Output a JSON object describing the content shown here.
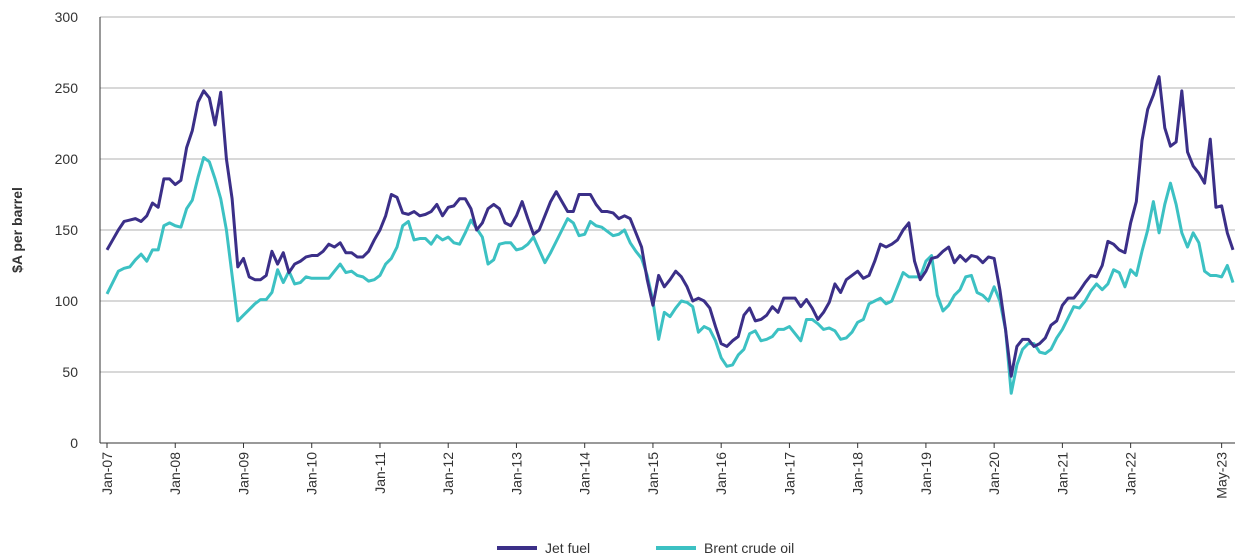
{
  "chart_data": {
    "type": "line",
    "y_label": "$A per barrel",
    "ylim": [
      0,
      300
    ],
    "yticks": [
      0,
      50,
      100,
      150,
      200,
      250,
      300
    ],
    "grid": true,
    "legend": "bottom",
    "categories": [
      "Jan-07",
      null,
      null,
      null,
      null,
      null,
      null,
      null,
      null,
      null,
      null,
      null,
      "Jan-08",
      null,
      null,
      null,
      null,
      null,
      null,
      null,
      null,
      null,
      null,
      null,
      "Jan-09",
      null,
      null,
      null,
      null,
      null,
      null,
      null,
      null,
      null,
      null,
      null,
      "Jan-10",
      null,
      null,
      null,
      null,
      null,
      null,
      null,
      null,
      null,
      null,
      null,
      "Jan-11",
      null,
      null,
      null,
      null,
      null,
      null,
      null,
      null,
      null,
      null,
      null,
      "Jan-12",
      null,
      null,
      null,
      null,
      null,
      null,
      null,
      null,
      null,
      null,
      null,
      "Jan-13",
      null,
      null,
      null,
      null,
      null,
      null,
      null,
      null,
      null,
      null,
      null,
      "Jan-14",
      null,
      null,
      null,
      null,
      null,
      null,
      null,
      null,
      null,
      null,
      null,
      "Jan-15",
      null,
      null,
      null,
      null,
      null,
      null,
      null,
      null,
      null,
      null,
      null,
      "Jan-16",
      null,
      null,
      null,
      null,
      null,
      null,
      null,
      null,
      null,
      null,
      null,
      "Jan-17",
      null,
      null,
      null,
      null,
      null,
      null,
      null,
      null,
      null,
      null,
      null,
      "Jan-18",
      null,
      null,
      null,
      null,
      null,
      null,
      null,
      null,
      null,
      null,
      null,
      "Jan-19",
      null,
      null,
      null,
      null,
      null,
      null,
      null,
      null,
      null,
      null,
      null,
      "Jan-20",
      null,
      null,
      null,
      null,
      null,
      null,
      null,
      null,
      null,
      null,
      null,
      "Jan-21",
      null,
      null,
      null,
      null,
      null,
      null,
      null,
      null,
      null,
      null,
      null,
      "Jan-22",
      null,
      null,
      null,
      null,
      null,
      null,
      null,
      null,
      null,
      null,
      null,
      null,
      null,
      null,
      null,
      "May-23",
      null,
      null
    ],
    "series": [
      {
        "name": "Jet fuel",
        "color": "#3b2f88",
        "values": [
          136,
          143,
          150,
          156,
          157,
          158,
          156,
          160,
          169,
          166,
          186,
          186,
          182,
          185,
          208,
          220,
          240,
          248,
          243,
          224,
          247,
          200,
          172,
          124,
          130,
          117,
          115,
          115,
          118,
          135,
          126,
          134,
          120,
          126,
          128,
          131,
          132,
          132,
          135,
          140,
          138,
          141,
          134,
          134,
          131,
          131,
          135,
          143,
          150,
          160,
          175,
          173,
          162,
          161,
          163,
          160,
          161,
          163,
          168,
          160,
          166,
          167,
          172,
          172,
          165,
          150,
          155,
          165,
          168,
          165,
          155,
          153,
          160,
          170,
          158,
          147,
          150,
          160,
          170,
          177,
          170,
          163,
          163,
          175,
          175,
          175,
          168,
          163,
          163,
          162,
          158,
          160,
          158,
          148,
          138,
          115,
          97,
          118,
          110,
          115,
          121,
          117,
          110,
          100,
          102,
          100,
          95,
          82,
          70,
          68,
          72,
          75,
          90,
          95,
          86,
          87,
          90,
          96,
          92,
          102,
          102,
          102,
          96,
          101,
          95,
          87,
          92,
          99,
          112,
          106,
          115,
          118,
          121,
          116,
          118,
          128,
          140,
          138,
          140,
          143,
          150,
          155,
          128,
          115,
          121,
          130,
          131,
          135,
          138,
          127,
          132,
          128,
          132,
          131,
          127,
          131,
          130,
          108,
          80,
          47,
          68,
          73,
          73,
          68,
          70,
          74,
          83,
          86,
          97,
          102,
          102,
          107,
          113,
          118,
          117,
          125,
          142,
          140,
          136,
          134,
          155,
          170,
          213,
          235,
          245,
          258,
          222,
          209,
          212,
          248,
          205,
          195,
          190,
          183,
          214,
          166,
          167,
          148,
          136
        ]
      },
      {
        "name": "Brent crude oil",
        "color": "#3cc1c3",
        "values": [
          105,
          113,
          121,
          123,
          124,
          129,
          133,
          128,
          136,
          136,
          153,
          155,
          153,
          152,
          165,
          171,
          187,
          201,
          198,
          186,
          172,
          150,
          118,
          86,
          90,
          94,
          98,
          101,
          101,
          106,
          122,
          113,
          121,
          112,
          113,
          117,
          116,
          116,
          116,
          116,
          121,
          126,
          120,
          121,
          118,
          117,
          114,
          115,
          118,
          126,
          130,
          138,
          153,
          156,
          143,
          144,
          144,
          140,
          146,
          143,
          145,
          141,
          140,
          148,
          157,
          151,
          145,
          126,
          129,
          140,
          141,
          141,
          136,
          137,
          140,
          145,
          136,
          127,
          134,
          142,
          150,
          158,
          155,
          146,
          147,
          156,
          153,
          152,
          149,
          146,
          147,
          150,
          141,
          135,
          130,
          118,
          100,
          73,
          92,
          89,
          95,
          100,
          99,
          96,
          78,
          82,
          80,
          72,
          60,
          54,
          55,
          62,
          66,
          77,
          79,
          72,
          73,
          75,
          80,
          80,
          82,
          77,
          72,
          87,
          87,
          84,
          80,
          81,
          79,
          73,
          74,
          78,
          85,
          87,
          98,
          100,
          102,
          98,
          100,
          110,
          120,
          117,
          117,
          117,
          128,
          132,
          104,
          93,
          97,
          104,
          108,
          117,
          118,
          106,
          104,
          100,
          110,
          100,
          80,
          35,
          55,
          66,
          70,
          70,
          64,
          63,
          66,
          74,
          80,
          88,
          96,
          95,
          100,
          107,
          112,
          108,
          112,
          122,
          120,
          110,
          122,
          118,
          135,
          150,
          170,
          148,
          168,
          183,
          168,
          148,
          138,
          148,
          141,
          121,
          118,
          118,
          117,
          125,
          113
        ]
      }
    ]
  }
}
